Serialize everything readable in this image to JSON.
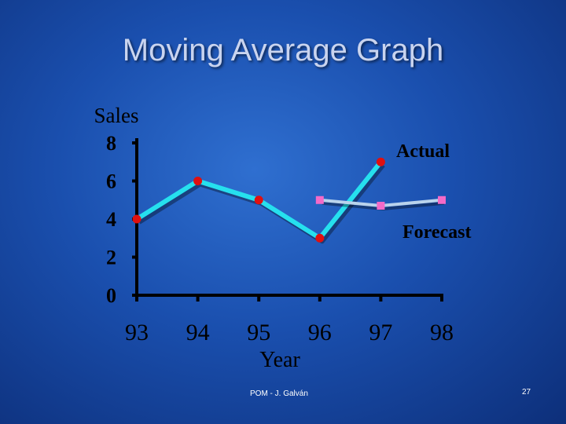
{
  "slide": {
    "title": "Moving Average Graph",
    "footer": "POM - J. Galván",
    "page_number": "27"
  },
  "colors": {
    "actual_line": "#26e0ee",
    "actual_marker": "#e01010",
    "forecast_line": "#b9d3ec",
    "forecast_marker": "#f46ac8",
    "axis": "#000000",
    "text": "#000000"
  },
  "chart_data": {
    "type": "line",
    "title": "",
    "ylabel": "Sales",
    "xlabel": "Year",
    "categories": [
      "93",
      "94",
      "95",
      "96",
      "97",
      "98"
    ],
    "yticks": [
      "0",
      "2",
      "4",
      "6",
      "8"
    ],
    "ylim": [
      0,
      8
    ],
    "grid": false,
    "series": [
      {
        "name": "Actual",
        "values": [
          4,
          6,
          5,
          3,
          7,
          null
        ]
      },
      {
        "name": "Forecast",
        "values": [
          null,
          null,
          null,
          5,
          4.7,
          5
        ]
      }
    ]
  }
}
